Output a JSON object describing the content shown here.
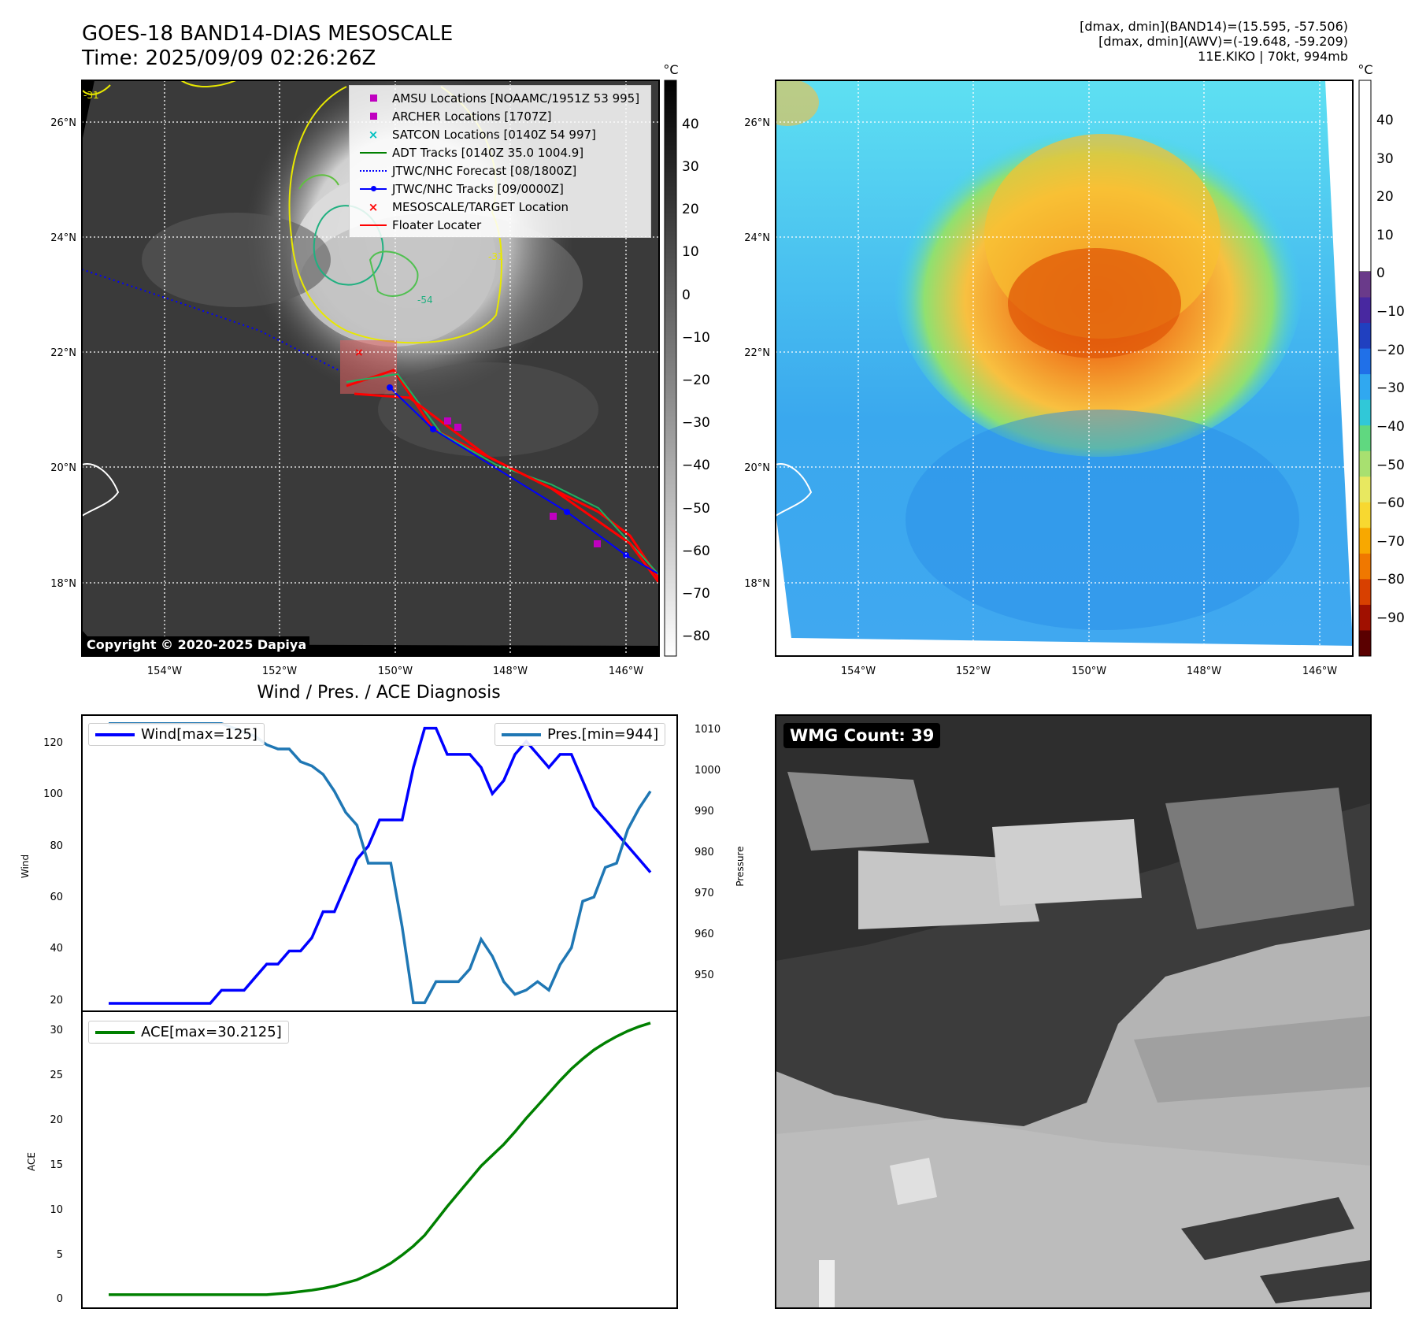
{
  "header": {
    "title_line1": "GOES-18 BAND14-DIAS MESOSCALE",
    "title_line2": "Time: 2025/09/09 02:26:26Z",
    "stats_line1": "[dmax, dmin](BAND14)=(15.595, -57.506)",
    "stats_line2": "[dmax, dmin](AWV)=(-19.648, -59.209)",
    "stats_line3": "11E.KIKO | 70kt, 994mb"
  },
  "map": {
    "lon_ticks": [
      "154°W",
      "152°W",
      "150°W",
      "148°W",
      "146°W"
    ],
    "lat_ticks": [
      "26°N",
      "24°N",
      "22°N",
      "20°N",
      "18°N"
    ],
    "copyright": "Copyright © 2020-2025 Dapiya",
    "unit": "°C",
    "contour_label_1": "-31",
    "contour_label_2": "-31",
    "contour_label_3": "-54"
  },
  "ir_colorbar": {
    "ticks": [
      "40",
      "30",
      "20",
      "10",
      "0",
      "−10",
      "−20",
      "−30",
      "−40",
      "−50",
      "−60",
      "−70",
      "−80"
    ]
  },
  "awv_colorbar": {
    "ticks": [
      "40",
      "30",
      "20",
      "10",
      "0",
      "−10",
      "−20",
      "−30",
      "−40",
      "−50",
      "−60",
      "−70",
      "−80",
      "−90"
    ],
    "colors": [
      "#5a0000",
      "#a01000",
      "#d84000",
      "#f07800",
      "#f8a800",
      "#f8d830",
      "#e8e860",
      "#a8e070",
      "#60d880",
      "#30c8d8",
      "#30a8f0",
      "#2070e8",
      "#2040c0",
      "#4828a0",
      "#6a3a8a"
    ]
  },
  "legend": {
    "items": [
      {
        "label": "AMSU Locations [NOAAMC/1951Z 53 995]",
        "symbol": "square",
        "color": "#c000c0"
      },
      {
        "label": "ARCHER Locations [1707Z]",
        "symbol": "square",
        "color": "#c000c0"
      },
      {
        "label": "SATCON Locations [0140Z 54 997]",
        "symbol": "x",
        "color": "#00c0c0"
      },
      {
        "label": "ADT Tracks [0140Z 35.0 1004.9]",
        "symbol": "line",
        "color": "#008000"
      },
      {
        "label": "JTWC/NHC Forecast [08/1800Z]",
        "symbol": "dotted",
        "color": "#0000ff"
      },
      {
        "label": "JTWC/NHC Tracks [09/0000Z]",
        "symbol": "line-dot",
        "color": "#0000ff"
      },
      {
        "label": "MESOSCALE/TARGET Location",
        "symbol": "x",
        "color": "#ff0000"
      },
      {
        "label": "Floater Locater",
        "symbol": "line",
        "color": "#ff0000"
      }
    ]
  },
  "diagnosis": {
    "title": "Wind / Pres. / ACE Diagnosis",
    "wind_legend": "Wind[max=125]",
    "pres_legend": "Pres.[min=944]",
    "ace_legend": "ACE[max=30.2125]",
    "wind_ylabel": "Wind",
    "pres_ylabel": "Pressure",
    "ace_ylabel": "ACE",
    "wind_ticks": [
      "120",
      "100",
      "80",
      "60",
      "40",
      "20"
    ],
    "pres_ticks": [
      "1010",
      "1000",
      "990",
      "980",
      "970",
      "960",
      "950"
    ],
    "ace_ticks": [
      "30",
      "25",
      "20",
      "15",
      "10",
      "5",
      "0"
    ]
  },
  "wmg": {
    "label": "WMG Count: 39"
  },
  "chart_data": [
    {
      "type": "line",
      "title": "Wind / Pres. / ACE Diagnosis",
      "ylabel": "Wind",
      "ylim": [
        17,
        130
      ],
      "series": [
        {
          "name": "Wind[max=125]",
          "color": "#0000ff",
          "values": [
            20,
            20,
            20,
            20,
            20,
            20,
            20,
            20,
            20,
            20,
            25,
            25,
            25,
            30,
            35,
            35,
            40,
            40,
            45,
            55,
            55,
            65,
            75,
            80,
            90,
            90,
            90,
            110,
            125,
            125,
            115,
            115,
            115,
            110,
            100,
            105,
            115,
            120,
            115,
            110,
            115,
            115,
            105,
            95,
            90,
            85,
            80,
            75,
            70
          ]
        }
      ]
    },
    {
      "type": "line",
      "ylabel": "Pressure",
      "ylim": [
        942,
        1012
      ],
      "series": [
        {
          "name": "Pres.[min=944]",
          "color": "#1f77b4",
          "values": [
            1010,
            1010,
            1010,
            1010,
            1010,
            1010,
            1010,
            1010,
            1010,
            1010,
            1010,
            1009,
            1008,
            1007,
            1005,
            1004,
            1004,
            1001,
            1000,
            998,
            994,
            989,
            986,
            977,
            977,
            977,
            962,
            944,
            944,
            949,
            949,
            949,
            952,
            959,
            955,
            949,
            946,
            947,
            949,
            947,
            953,
            957,
            968,
            969,
            976,
            977,
            985,
            990,
            994
          ]
        }
      ]
    },
    {
      "type": "line",
      "ylabel": "ACE",
      "ylim": [
        -1.5,
        31.5
      ],
      "series": [
        {
          "name": "ACE[max=30.2125]",
          "color": "#008000",
          "values": [
            0,
            0,
            0,
            0,
            0,
            0,
            0,
            0,
            0,
            0,
            0,
            0,
            0,
            0,
            0,
            0.1,
            0.2,
            0.35,
            0.5,
            0.7,
            0.95,
            1.3,
            1.65,
            2.2,
            2.8,
            3.5,
            4.4,
            5.4,
            6.6,
            8.2,
            9.8,
            11.3,
            12.8,
            14.3,
            15.5,
            16.7,
            18.1,
            19.6,
            21.0,
            22.4,
            23.8,
            25.1,
            26.2,
            27.2,
            28.0,
            28.7,
            29.3,
            29.8,
            30.2
          ]
        }
      ]
    }
  ]
}
